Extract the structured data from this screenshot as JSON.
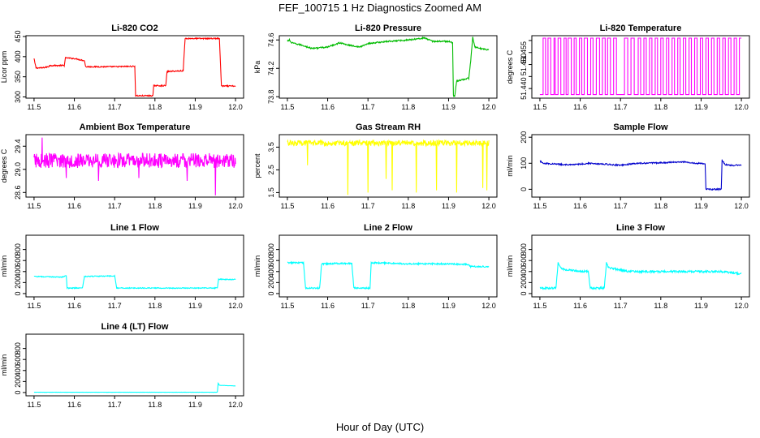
{
  "figure": {
    "title": "FEF_100715  1 Hz Diagnostics Zoomed AM",
    "xlabel": "Hour of Day (UTC)"
  },
  "chart_data": [
    {
      "type": "line",
      "title": "Li-820 CO2",
      "ylabel": "Licor ppm",
      "color": "#ff0000",
      "xlim": [
        11.5,
        12.0
      ],
      "ylim": [
        297,
        452
      ],
      "xticks": [
        11.5,
        11.6,
        11.7,
        11.8,
        11.9,
        12.0
      ],
      "xtick_labels": [
        "11.5",
        "11.6",
        "11.7",
        "11.8",
        "11.9",
        "12.0"
      ],
      "yticks": [
        300,
        350,
        400,
        450
      ],
      "ytick_labels": [
        "300",
        "350",
        "400",
        "450"
      ],
      "noise": 1.5,
      "x": [
        11.5,
        11.502,
        11.505,
        11.52,
        11.536,
        11.538,
        11.575,
        11.578,
        11.602,
        11.625,
        11.628,
        11.7,
        11.75,
        11.752,
        11.795,
        11.797,
        11.827,
        11.83,
        11.87,
        11.875,
        11.96,
        11.965,
        12.0
      ],
      "y": [
        395,
        385,
        372,
        372,
        375,
        378,
        378,
        397,
        395,
        390,
        375,
        375,
        376,
        303,
        303,
        328,
        328,
        363,
        365,
        445,
        445,
        327,
        327
      ]
    },
    {
      "type": "line",
      "title": "Li-820 Pressure",
      "ylabel": "kPa",
      "color": "#00bb00",
      "xlim": [
        11.5,
        12.0
      ],
      "ylim": [
        73.78,
        74.66
      ],
      "xticks": [
        11.5,
        11.6,
        11.7,
        11.8,
        11.9,
        12.0
      ],
      "xtick_labels": [
        "11.5",
        "11.6",
        "11.7",
        "11.8",
        "11.9",
        "12.0"
      ],
      "yticks": [
        73.8,
        74.2,
        74.6
      ],
      "ytick_labels": [
        "73.8",
        "74.2",
        "74.6"
      ],
      "noise": 0.01,
      "x": [
        11.5,
        11.505,
        11.51,
        11.54,
        11.56,
        11.6,
        11.63,
        11.65,
        11.68,
        11.7,
        11.75,
        11.8,
        11.84,
        11.86,
        11.9,
        11.91,
        11.912,
        11.915,
        11.92,
        11.95,
        11.955,
        11.96,
        11.965,
        11.98,
        12.0
      ],
      "y": [
        74.58,
        74.6,
        74.56,
        74.52,
        74.48,
        74.5,
        74.56,
        74.53,
        74.5,
        74.55,
        74.58,
        74.6,
        74.63,
        74.58,
        74.58,
        74.56,
        73.82,
        73.8,
        74.02,
        74.06,
        74.3,
        74.64,
        74.5,
        74.48,
        74.46
      ]
    },
    {
      "type": "line",
      "title": "Li-820 Temperature",
      "ylabel": "degrees C",
      "color": "#ff00ff",
      "xlim": [
        11.5,
        12.0
      ],
      "ylim": [
        51.436,
        51.462
      ],
      "xticks": [
        11.5,
        11.6,
        11.7,
        11.8,
        11.9,
        12.0
      ],
      "xtick_labels": [
        "11.5",
        "11.6",
        "11.7",
        "11.8",
        "11.9",
        "12.0"
      ],
      "yticks": [
        51.44,
        51.445,
        51.45,
        51.455,
        51.46
      ],
      "ytick_labels": [
        "51.440",
        "",
        "51.450",
        "51.455",
        ""
      ],
      "low": 51.4375,
      "high": 51.461,
      "events": [
        11.508,
        11.514,
        11.52,
        11.527,
        11.535,
        11.538,
        11.545,
        11.552,
        11.56,
        11.565,
        11.57,
        11.578,
        11.585,
        11.59,
        11.598,
        11.604,
        11.61,
        11.618,
        11.626,
        11.632,
        11.64,
        11.648,
        11.655,
        11.662,
        11.668,
        11.675,
        11.683,
        11.69,
        11.71,
        11.718,
        11.726,
        11.734,
        11.744,
        11.75,
        11.758,
        11.764,
        11.772,
        11.778,
        11.786,
        11.792,
        11.8,
        11.806,
        11.814,
        11.82,
        11.828,
        11.834,
        11.842,
        11.848,
        11.856,
        11.862,
        11.87,
        11.876,
        11.884,
        11.89,
        11.898,
        11.904,
        11.912,
        11.918,
        11.926,
        11.932,
        11.94,
        11.946,
        11.954,
        11.96,
        11.968,
        11.974,
        11.982,
        11.988,
        11.995
      ]
    },
    {
      "type": "line",
      "title": "Ambient Box Temperature",
      "ylabel": "degrees C",
      "color": "#ff00ff",
      "xlim": [
        11.5,
        12.0
      ],
      "ylim": [
        28.52,
        29.6
      ],
      "xticks": [
        11.5,
        11.6,
        11.7,
        11.8,
        11.9,
        12.0
      ],
      "xtick_labels": [
        "11.5",
        "11.6",
        "11.7",
        "11.8",
        "11.9",
        "12.0"
      ],
      "yticks": [
        28.6,
        29.0,
        29.4
      ],
      "ytick_labels": [
        "28.6",
        "29.0",
        "29.4"
      ],
      "noise": 0.13,
      "center": 29.15,
      "spikes": [
        [
          11.52,
          29.55
        ],
        [
          11.58,
          28.85
        ],
        [
          11.66,
          28.8
        ],
        [
          11.76,
          28.85
        ],
        [
          11.88,
          28.8
        ],
        [
          11.95,
          28.55
        ]
      ]
    },
    {
      "type": "line",
      "title": "Gas Stream RH",
      "ylabel": "percent",
      "color": "#ffff00",
      "xlim": [
        11.5,
        12.0
      ],
      "ylim": [
        1.3,
        4.05
      ],
      "xticks": [
        11.5,
        11.6,
        11.7,
        11.8,
        11.9,
        12.0
      ],
      "xtick_labels": [
        "11.5",
        "11.6",
        "11.7",
        "11.8",
        "11.9",
        "12.0"
      ],
      "yticks": [
        1.5,
        2.5,
        3.5
      ],
      "ytick_labels": [
        "1.5",
        "2.5",
        "3.5"
      ],
      "noise": 0.12,
      "center": 3.68,
      "spikes": [
        [
          11.55,
          2.7
        ],
        [
          11.65,
          1.4
        ],
        [
          11.7,
          1.5
        ],
        [
          11.745,
          2.1
        ],
        [
          11.76,
          1.6
        ],
        [
          11.82,
          1.5
        ],
        [
          11.87,
          1.6
        ],
        [
          11.92,
          1.5
        ],
        [
          11.985,
          1.7
        ],
        [
          11.995,
          1.6
        ]
      ]
    },
    {
      "type": "line",
      "title": "Sample Flow",
      "ylabel": "ml/min",
      "color": "#0000cc",
      "xlim": [
        11.5,
        12.0
      ],
      "ylim": [
        -30,
        210
      ],
      "xticks": [
        11.5,
        11.6,
        11.7,
        11.8,
        11.9,
        12.0
      ],
      "xtick_labels": [
        "11.5",
        "11.6",
        "11.7",
        "11.8",
        "11.9",
        "12.0"
      ],
      "yticks": [
        0,
        100,
        200
      ],
      "ytick_labels": [
        "0",
        "100",
        "200"
      ],
      "noise": 2.5,
      "x": [
        11.5,
        11.51,
        11.55,
        11.58,
        11.62,
        11.66,
        11.7,
        11.74,
        11.78,
        11.82,
        11.86,
        11.88,
        11.9,
        11.91,
        11.912,
        11.95,
        11.952,
        11.96,
        11.97,
        12.0
      ],
      "y": [
        108,
        100,
        96,
        94,
        100,
        97,
        92,
        100,
        101,
        103,
        106,
        100,
        100,
        98,
        0,
        0,
        112,
        95,
        92,
        92
      ]
    },
    {
      "type": "line",
      "title": "Line 1 Flow",
      "ylabel": "ml/min",
      "color": "#00ffff",
      "xlim": [
        11.5,
        12.0
      ],
      "ylim": [
        -60,
        1060
      ],
      "xticks": [
        11.5,
        11.6,
        11.7,
        11.8,
        11.9,
        12.0
      ],
      "xtick_labels": [
        "11.5",
        "11.6",
        "11.7",
        "11.8",
        "11.9",
        "12.0"
      ],
      "yticks": [
        0,
        200,
        400,
        600,
        800
      ],
      "ytick_labels": [
        "0",
        "200",
        "400",
        "600",
        "800"
      ],
      "noise": 8,
      "x": [
        11.5,
        11.57,
        11.58,
        11.582,
        11.62,
        11.625,
        11.7,
        11.705,
        11.955,
        11.958,
        12.0
      ],
      "y": [
        310,
        300,
        330,
        100,
        100,
        310,
        320,
        100,
        100,
        260,
        255
      ]
    },
    {
      "type": "line",
      "title": "Line 2 Flow",
      "ylabel": "ml/min",
      "color": "#00ffff",
      "xlim": [
        11.5,
        12.0
      ],
      "ylim": [
        -60,
        1060
      ],
      "xticks": [
        11.5,
        11.6,
        11.7,
        11.8,
        11.9,
        12.0
      ],
      "xtick_labels": [
        "11.5",
        "11.6",
        "11.7",
        "11.8",
        "11.9",
        "12.0"
      ],
      "yticks": [
        0,
        200,
        400,
        600,
        800
      ],
      "ytick_labels": [
        "0",
        "200",
        "400",
        "600",
        "800"
      ],
      "noise": 14,
      "x": [
        11.5,
        11.54,
        11.545,
        11.58,
        11.585,
        11.66,
        11.665,
        11.705,
        11.708,
        11.8,
        11.9,
        11.95,
        11.955,
        12.0
      ],
      "y": [
        560,
        560,
        100,
        100,
        540,
        550,
        100,
        100,
        560,
        540,
        540,
        530,
        490,
        490
      ]
    },
    {
      "type": "line",
      "title": "Line 3 Flow",
      "ylabel": "ml/min",
      "color": "#00ffff",
      "xlim": [
        11.5,
        12.0
      ],
      "ylim": [
        -60,
        1060
      ],
      "xticks": [
        11.5,
        11.6,
        11.7,
        11.8,
        11.9,
        12.0
      ],
      "xtick_labels": [
        "11.5",
        "11.6",
        "11.7",
        "11.8",
        "11.9",
        "12.0"
      ],
      "yticks": [
        0,
        200,
        400,
        600,
        800
      ],
      "ytick_labels": [
        "0",
        "200",
        "400",
        "600",
        "800"
      ],
      "noise": 18,
      "x": [
        11.5,
        11.54,
        11.545,
        11.55,
        11.56,
        11.58,
        11.62,
        11.625,
        11.66,
        11.665,
        11.67,
        11.69,
        11.7,
        11.72,
        11.8,
        11.9,
        11.95,
        12.0
      ],
      "y": [
        100,
        100,
        560,
        480,
        440,
        420,
        400,
        100,
        100,
        560,
        470,
        440,
        430,
        400,
        400,
        400,
        400,
        360
      ]
    },
    {
      "type": "line",
      "title": "Line 4 (LT) Flow",
      "ylabel": "ml/min",
      "color": "#00ffff",
      "xlim": [
        11.5,
        12.0
      ],
      "ylim": [
        -60,
        1060
      ],
      "xticks": [
        11.5,
        11.6,
        11.7,
        11.8,
        11.9,
        12.0
      ],
      "xtick_labels": [
        "11.5",
        "11.6",
        "11.7",
        "11.8",
        "11.9",
        "12.0"
      ],
      "yticks": [
        0,
        200,
        400,
        600,
        800
      ],
      "ytick_labels": [
        "0",
        "200",
        "400",
        "600",
        "800"
      ],
      "noise": 2,
      "x": [
        11.5,
        11.95,
        11.955,
        11.957,
        11.96,
        12.0
      ],
      "y": [
        5,
        5,
        8,
        170,
        130,
        120
      ]
    }
  ]
}
